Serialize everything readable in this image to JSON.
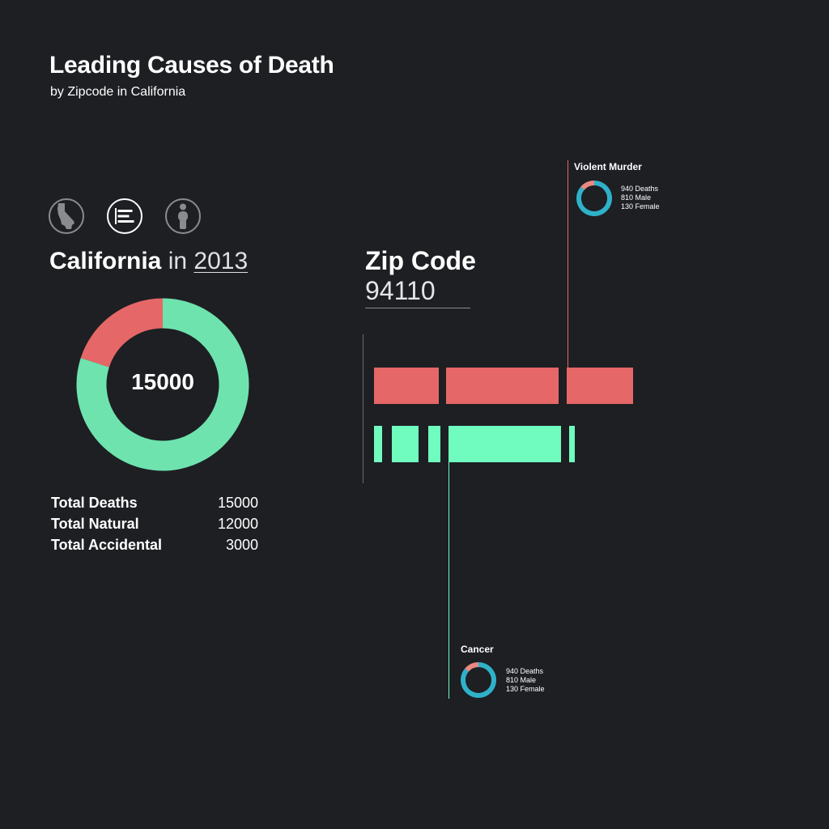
{
  "header": {
    "title": "Leading Causes of Death",
    "subtitle": "by Zipcode in California"
  },
  "modes": [
    {
      "name": "state-map-icon",
      "active": false
    },
    {
      "name": "bar-chart-icon",
      "active": true
    },
    {
      "name": "person-icon",
      "active": false
    }
  ],
  "state_panel": {
    "state": "California",
    "in_word": "in",
    "year": "2013",
    "donut_center": "15000",
    "stats": [
      {
        "label": "Total Deaths",
        "value": "15000"
      },
      {
        "label": "Total Natural",
        "value": "12000"
      },
      {
        "label": "Total Accidental",
        "value": "3000"
      }
    ]
  },
  "zip_panel": {
    "label": "Zip Code",
    "value": "94110"
  },
  "callouts": {
    "violent_murder": {
      "title": "Violent Murder",
      "deaths": "940 Deaths",
      "male": "810 Male",
      "female": "130 Female"
    },
    "cancer": {
      "title": "Cancer",
      "deaths": "940 Deaths",
      "male": "810 Male",
      "female": "130 Female"
    }
  },
  "chart_data": {
    "type": "pie",
    "categories": [
      "Natural",
      "Accidental"
    ],
    "values": [
      12000,
      3000
    ],
    "colors": {
      "Natural": "#6ee3ae",
      "Accidental": "#e66767"
    }
  },
  "mini_donuts": {
    "male": 810,
    "female": 130,
    "colors": {
      "male": "#2fb2c9",
      "female": "#e88a80"
    }
  },
  "colors": {
    "background": "#1d1f23",
    "accidental": "#e66767",
    "natural": "#6ffcbe",
    "natural_donut": "#6ee3ae"
  }
}
